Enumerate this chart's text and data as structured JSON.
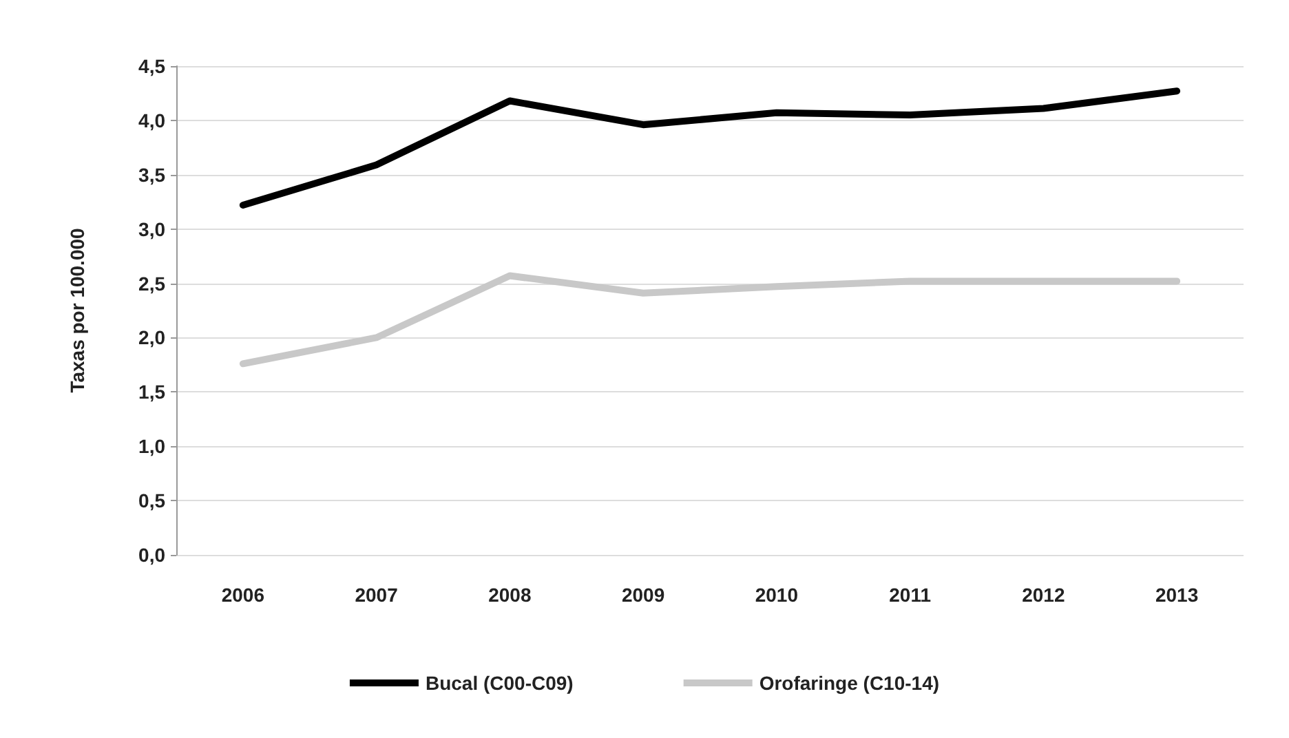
{
  "chart_data": {
    "type": "line",
    "ylabel": "Taxas por 100.000",
    "categories": [
      "2006",
      "2007",
      "2008",
      "2009",
      "2010",
      "2011",
      "2012",
      "2013"
    ],
    "series": [
      {
        "name": "Bucal (C00-C09)",
        "color": "#000000",
        "values": [
          3.22,
          3.59,
          4.18,
          3.96,
          4.07,
          4.05,
          4.11,
          4.27
        ]
      },
      {
        "name": "Orofaringe (C10-14)",
        "color": "#c8c8c8",
        "values": [
          1.76,
          2.0,
          2.57,
          2.41,
          2.47,
          2.52,
          2.52,
          2.52
        ]
      }
    ],
    "ylim": [
      0,
      4.5
    ],
    "yticks": [
      {
        "value": 0,
        "label": "0,0"
      },
      {
        "value": 0.5,
        "label": "0,5"
      },
      {
        "value": 1,
        "label": "1,0"
      },
      {
        "value": 1.5,
        "label": "1,5"
      },
      {
        "value": 2,
        "label": "2,0"
      },
      {
        "value": 2.5,
        "label": "2,5"
      },
      {
        "value": 3,
        "label": "3,0"
      },
      {
        "value": 3.5,
        "label": "3,5"
      },
      {
        "value": 4,
        "label": "4,0"
      },
      {
        "value": 4.5,
        "label": "4,5"
      }
    ],
    "grid": "y",
    "legend": "bottom",
    "marker": "none",
    "line_style": "solid"
  }
}
